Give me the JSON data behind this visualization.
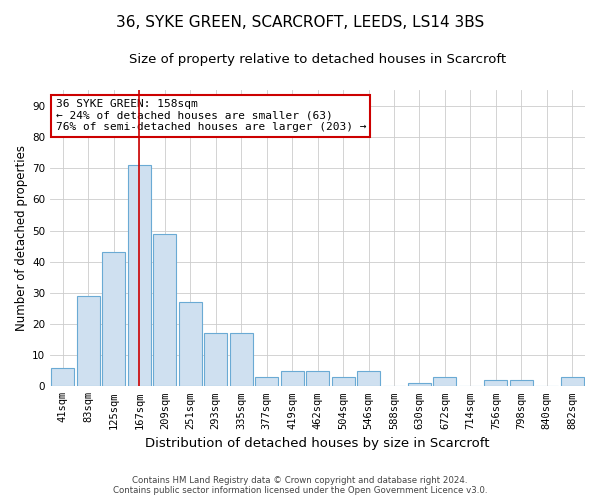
{
  "title": "36, SYKE GREEN, SCARCROFT, LEEDS, LS14 3BS",
  "subtitle": "Size of property relative to detached houses in Scarcroft",
  "xlabel": "Distribution of detached houses by size in Scarcroft",
  "ylabel": "Number of detached properties",
  "bin_labels": [
    "41sqm",
    "83sqm",
    "125sqm",
    "167sqm",
    "209sqm",
    "251sqm",
    "293sqm",
    "335sqm",
    "377sqm",
    "419sqm",
    "462sqm",
    "504sqm",
    "546sqm",
    "588sqm",
    "630sqm",
    "672sqm",
    "714sqm",
    "756sqm",
    "798sqm",
    "840sqm",
    "882sqm"
  ],
  "bar_heights": [
    6,
    29,
    43,
    71,
    49,
    27,
    17,
    17,
    3,
    5,
    5,
    3,
    5,
    0,
    1,
    3,
    0,
    2,
    2,
    0,
    3
  ],
  "bar_color": "#cfe0f0",
  "bar_edge_color": "#6aaad4",
  "red_line_index": 3,
  "red_line_color": "#cc0000",
  "annotation_line1": "36 SYKE GREEN: 158sqm",
  "annotation_line2": "← 24% of detached houses are smaller (63)",
  "annotation_line3": "76% of semi-detached houses are larger (203) →",
  "annotation_box_color": "#ffffff",
  "annotation_box_edge": "#cc0000",
  "ylim": [
    0,
    95
  ],
  "yticks": [
    0,
    10,
    20,
    30,
    40,
    50,
    60,
    70,
    80,
    90
  ],
  "title_fontsize": 11,
  "subtitle_fontsize": 9.5,
  "xlabel_fontsize": 9.5,
  "ylabel_fontsize": 8.5,
  "tick_fontsize": 7.5,
  "footer_line1": "Contains HM Land Registry data © Crown copyright and database right 2024.",
  "footer_line2": "Contains public sector information licensed under the Open Government Licence v3.0.",
  "background_color": "#ffffff",
  "grid_color": "#cccccc"
}
